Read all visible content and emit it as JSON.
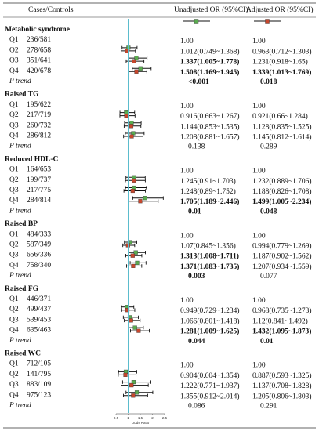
{
  "header": {
    "col1": "Cases/Controls",
    "col2": "Unadjusted OR (95%CI)",
    "col3": "Adjusted OR (95%CI)"
  },
  "colors": {
    "unadjusted": "#5aab4f",
    "adjusted": "#c7462c",
    "reference_line": "#5bbccd",
    "rule": "#333333"
  },
  "chart_data": {
    "type": "forest",
    "xlabel": "Odds Ratio",
    "xlim": [
      0.5,
      2.5
    ],
    "xticks": [
      "0.5",
      "1",
      "1.5",
      "2",
      "2.5"
    ],
    "reference": 1,
    "legend": [
      "Unadjusted OR (95%CI)",
      "Adjusted OR (95%CI)"
    ],
    "groups": [
      {
        "name": "Metabolic syndrome",
        "rows": [
          {
            "q": "Q1",
            "cc": "236/581",
            "unadj": "1.00",
            "adj": "1.00",
            "u": null,
            "a": null,
            "ub": false,
            "ab": false
          },
          {
            "q": "Q2",
            "cc": "278/658",
            "unadj": "1.012(0.749~1.368)",
            "adj": "0.963(0.712~1.303)",
            "u": [
              1.012,
              0.749,
              1.368
            ],
            "a": [
              0.963,
              0.712,
              1.303
            ],
            "ub": false,
            "ab": false
          },
          {
            "q": "Q3",
            "cc": "351/641",
            "unadj": "1.337(1.005~1.778)",
            "adj": "1.231(0.918~1.65)",
            "u": [
              1.337,
              1.005,
              1.778
            ],
            "a": [
              1.231,
              0.918,
              1.65
            ],
            "ub": true,
            "ab": false
          },
          {
            "q": "Q4",
            "cc": "420/678",
            "unadj": "1.508(1.169~1.945)",
            "adj": "1.339(1.013~1.769)",
            "u": [
              1.508,
              1.169,
              1.945
            ],
            "a": [
              1.339,
              1.013,
              1.769
            ],
            "ub": true,
            "ab": true
          }
        ],
        "p_label": "P trend",
        "p_unadj": "<0.001",
        "p_adj": "0.018",
        "p_ub": true,
        "p_ab": true
      },
      {
        "name": "Raised TG",
        "rows": [
          {
            "q": "Q1",
            "cc": "195/622",
            "unadj": "1.00",
            "adj": "1.00",
            "u": null,
            "a": null,
            "ub": false,
            "ab": false
          },
          {
            "q": "Q2",
            "cc": "217/719",
            "unadj": "0.916(0.663~1.267)",
            "adj": "0.921(0.66~1.284)",
            "u": [
              0.916,
              0.663,
              1.267
            ],
            "a": [
              0.921,
              0.66,
              1.284
            ],
            "ub": false,
            "ab": false
          },
          {
            "q": "Q3",
            "cc": "260/732",
            "unadj": "1.144(0.853~1.535)",
            "adj": "1.128(0.835~1.525)",
            "u": [
              1.144,
              0.853,
              1.535
            ],
            "a": [
              1.128,
              0.835,
              1.525
            ],
            "ub": false,
            "ab": false
          },
          {
            "q": "Q4",
            "cc": "286/812",
            "unadj": "1.208(0.881~1.657)",
            "adj": "1.145(0.812~1.614)",
            "u": [
              1.208,
              0.881,
              1.657
            ],
            "a": [
              1.145,
              0.812,
              1.614
            ],
            "ub": false,
            "ab": false
          }
        ],
        "p_label": "P trend",
        "p_unadj": "0.138",
        "p_adj": "0.289",
        "p_ub": false,
        "p_ab": false
      },
      {
        "name": "Reduced HDL-C",
        "rows": [
          {
            "q": "Q1",
            "cc": "164/653",
            "unadj": "1.00",
            "adj": "1.00",
            "u": null,
            "a": null,
            "ub": false,
            "ab": false
          },
          {
            "q": "Q2",
            "cc": "199/737",
            "unadj": "1.245(0.91~1.703)",
            "adj": "1.232(0.889~1.706)",
            "u": [
              1.245,
              0.91,
              1.703
            ],
            "a": [
              1.232,
              0.889,
              1.706
            ],
            "ub": false,
            "ab": false
          },
          {
            "q": "Q3",
            "cc": "217/775",
            "unadj": "1.248(0.89~1.752)",
            "adj": "1.188(0.826~1.708)",
            "u": [
              1.248,
              0.89,
              1.752
            ],
            "a": [
              1.188,
              0.826,
              1.708
            ],
            "ub": false,
            "ab": false
          },
          {
            "q": "Q4",
            "cc": "284/814",
            "unadj": "1.705(1.189~2.446)",
            "adj": "1.499(1.005~2.234)",
            "u": [
              1.705,
              1.189,
              2.446
            ],
            "a": [
              1.499,
              1.005,
              2.234
            ],
            "ub": true,
            "ab": true
          }
        ],
        "p_label": "P trend",
        "p_unadj": "0.01",
        "p_adj": "0.048",
        "p_ub": true,
        "p_ab": true
      },
      {
        "name": "Raised BP",
        "rows": [
          {
            "q": "Q1",
            "cc": "484/333",
            "unadj": "1.00",
            "adj": "1.00",
            "u": null,
            "a": null,
            "ub": false,
            "ab": false
          },
          {
            "q": "Q2",
            "cc": "587/349",
            "unadj": "1.07(0.845~1.356)",
            "adj": "0.994(0.779~1.269)",
            "u": [
              1.07,
              0.845,
              1.356
            ],
            "a": [
              0.994,
              0.779,
              1.269
            ],
            "ub": false,
            "ab": false
          },
          {
            "q": "Q3",
            "cc": "656/336",
            "unadj": "1.313(1.008~1.711)",
            "adj": "1.187(0.902~1.562)",
            "u": [
              1.313,
              1.008,
              1.711
            ],
            "a": [
              1.187,
              0.902,
              1.562
            ],
            "ub": true,
            "ab": false
          },
          {
            "q": "Q4",
            "cc": "758/340",
            "unadj": "1.371(1.083~1.735)",
            "adj": "1.207(0.934~1.559)",
            "u": [
              1.371,
              1.083,
              1.735
            ],
            "a": [
              1.207,
              0.934,
              1.559
            ],
            "ub": true,
            "ab": false
          }
        ],
        "p_label": "P trend",
        "p_unadj": "0.003",
        "p_adj": "0.077",
        "p_ub": true,
        "p_ab": false
      },
      {
        "name": "Raised FG",
        "rows": [
          {
            "q": "Q1",
            "cc": "446/371",
            "unadj": "1.00",
            "adj": "1.00",
            "u": null,
            "a": null,
            "ub": false,
            "ab": false
          },
          {
            "q": "Q2",
            "cc": "499/437",
            "unadj": "0.949(0.729~1.234)",
            "adj": "0.968(0.735~1.273)",
            "u": [
              0.949,
              0.729,
              1.234
            ],
            "a": [
              0.968,
              0.735,
              1.273
            ],
            "ub": false,
            "ab": false
          },
          {
            "q": "Q3",
            "cc": "539/453",
            "unadj": "1.066(0.801~1.418)",
            "adj": "1.12(0.841~1.492)",
            "u": [
              1.066,
              0.801,
              1.418
            ],
            "a": [
              1.12,
              0.841,
              1.492
            ],
            "ub": false,
            "ab": false
          },
          {
            "q": "Q4",
            "cc": "635/463",
            "unadj": "1.281(1.009~1.625)",
            "adj": "1.432(1.095~1.873)",
            "u": [
              1.281,
              1.009,
              1.625
            ],
            "a": [
              1.432,
              1.095,
              1.873
            ],
            "ub": true,
            "ab": true
          }
        ],
        "p_label": "P trend",
        "p_unadj": "0.044",
        "p_adj": "0.01",
        "p_ub": true,
        "p_ab": true
      },
      {
        "name": "Raised WC",
        "rows": [
          {
            "q": "Q1",
            "cc": "712/105",
            "unadj": "1.00",
            "adj": "1.00",
            "u": null,
            "a": null,
            "ub": false,
            "ab": false
          },
          {
            "q": "Q2",
            "cc": "141/795",
            "unadj": "0.904(0.604~1.354)",
            "adj": "0.887(0.593~1.325)",
            "u": [
              0.904,
              0.604,
              1.354
            ],
            "a": [
              0.887,
              0.593,
              1.325
            ],
            "ub": false,
            "ab": false
          },
          {
            "q": "Q3",
            "cc": "883/109",
            "unadj": "1.222(0.771~1.937)",
            "adj": "1.137(0.708~1.828)",
            "u": [
              1.222,
              0.771,
              1.937
            ],
            "a": [
              1.137,
              0.708,
              1.828
            ],
            "ub": false,
            "ab": false
          },
          {
            "q": "Q4",
            "cc": "975/123",
            "unadj": "1.355(0.912~2.014)",
            "adj": "1.205(0.806~1.803)",
            "u": [
              1.355,
              0.912,
              2.014
            ],
            "a": [
              1.205,
              0.806,
              1.803
            ],
            "ub": false,
            "ab": false
          }
        ],
        "p_label": "P trend",
        "p_unadj": "0.086",
        "p_adj": "0.291",
        "p_ub": false,
        "p_ab": false
      }
    ]
  }
}
